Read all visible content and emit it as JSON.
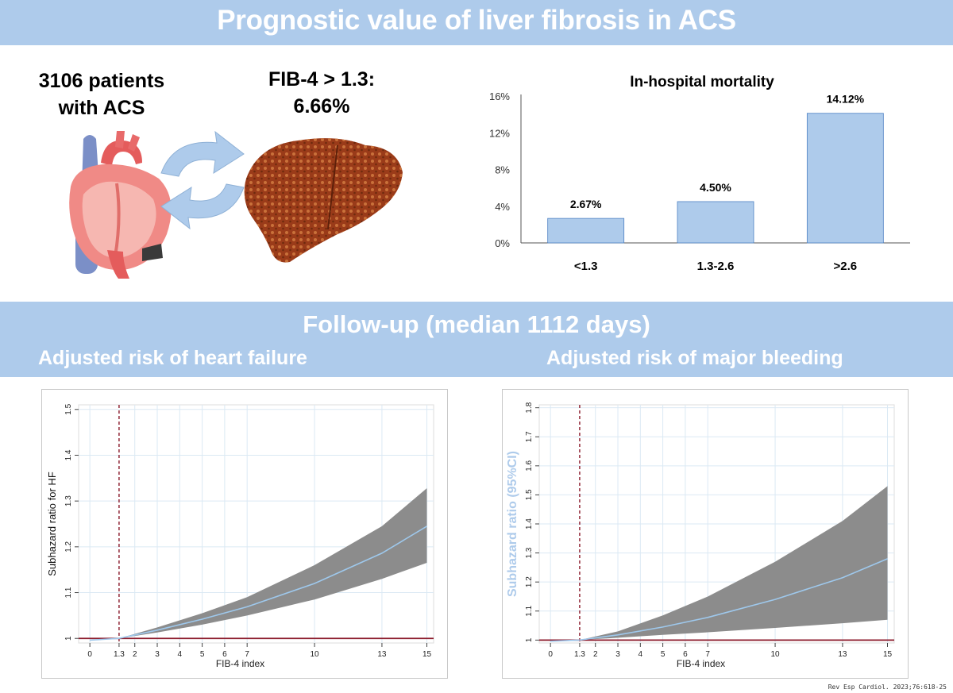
{
  "header": {
    "title": "Prognostic value of liver fibrosis in ACS"
  },
  "summary": {
    "patients_line1": "3106 patients",
    "patients_line2": "with ACS",
    "fib4_line1": "FIB-4 > 1.3:",
    "fib4_line2": "6.66%"
  },
  "icons": [
    "heart-icon",
    "liver-icon",
    "cycle-arrows-icon"
  ],
  "followup": {
    "title": "Follow-up (median 1112 days)",
    "hf_subtitle": "Adjusted risk of heart failure",
    "mb_subtitle": "Adjusted risk of major bleeding"
  },
  "citation": "Rev Esp Cardiol. 2023;76:618-25",
  "colors": {
    "band": "#aecbeb",
    "bar_fill": "#aecbeb",
    "ci_band": "#8c8c8c",
    "estimate_line": "#9ec8ec",
    "reference_line": "#8b1a2b"
  },
  "chart_data": [
    {
      "type": "bar",
      "title": "In-hospital mortality",
      "categories": [
        "<1.3",
        "1.3-2.6",
        ">2.6"
      ],
      "values": [
        2.67,
        4.5,
        14.12
      ],
      "value_labels": [
        "2.67%",
        "4.50%",
        "14.12%"
      ],
      "ylim": [
        0,
        16
      ],
      "yticks": [
        0,
        4,
        8,
        12,
        16
      ],
      "ytick_labels": [
        "0%",
        "4%",
        "8%",
        "12%",
        "16%"
      ],
      "grid": false
    },
    {
      "type": "line",
      "title": "Adjusted risk of heart failure",
      "xlabel": "FIB-4 index",
      "ylabel": "Subhazard ratio for HF",
      "xlim": [
        -0.5,
        15.3
      ],
      "ylim": [
        0.99,
        1.51
      ],
      "xticks": [
        0,
        1.3,
        2,
        3,
        4,
        5,
        6,
        7,
        10,
        13,
        15
      ],
      "xtick_labels": [
        "0",
        "1.3",
        "2",
        "3",
        "4",
        "5",
        "6",
        "7",
        "10",
        "13",
        "15"
      ],
      "yticks": [
        1,
        1.1,
        1.2,
        1.3,
        1.4,
        1.5
      ],
      "ytick_labels": [
        "1",
        "1.1",
        "1.2",
        "1.3",
        "1.4",
        "1.5"
      ],
      "reference_x": 1.3,
      "reference_y": 1,
      "grid": true,
      "series": [
        {
          "name": "estimate",
          "x": [
            0,
            1.3,
            3,
            5,
            7,
            10,
            13,
            15
          ],
          "y": [
            0.996,
            1.0,
            1.018,
            1.042,
            1.069,
            1.12,
            1.186,
            1.245
          ]
        },
        {
          "name": "lower_ci",
          "x": [
            1.3,
            3,
            5,
            7,
            10,
            13,
            15
          ],
          "y": [
            1.0,
            1.013,
            1.03,
            1.05,
            1.085,
            1.13,
            1.165
          ]
        },
        {
          "name": "upper_ci",
          "x": [
            1.3,
            3,
            5,
            7,
            10,
            13,
            15
          ],
          "y": [
            1.0,
            1.024,
            1.055,
            1.09,
            1.16,
            1.245,
            1.328
          ]
        }
      ]
    },
    {
      "type": "line",
      "title": "Adjusted risk of major bleeding",
      "xlabel": "FIB-4 index",
      "ylabel": "Subhazard ratio (95%CI)",
      "xlim": [
        -0.5,
        15.3
      ],
      "ylim": [
        0.99,
        1.81
      ],
      "xticks": [
        0,
        1.3,
        2,
        3,
        4,
        5,
        6,
        7,
        10,
        13,
        15
      ],
      "xtick_labels": [
        "0",
        "1.3",
        "2",
        "3",
        "4",
        "5",
        "6",
        "7",
        "10",
        "13",
        "15"
      ],
      "yticks": [
        1,
        1.1,
        1.2,
        1.3,
        1.4,
        1.5,
        1.6,
        1.7,
        1.8
      ],
      "ytick_labels": [
        "1",
        "1.1",
        "1.2",
        "1.3",
        "1.4",
        "1.5",
        "1.6",
        "1.7",
        "1.8"
      ],
      "reference_x": 1.3,
      "reference_y": 1,
      "grid": true,
      "series": [
        {
          "name": "estimate",
          "x": [
            0,
            1.3,
            3,
            5,
            7,
            10,
            13,
            15
          ],
          "y": [
            0.996,
            1.0,
            1.018,
            1.045,
            1.078,
            1.14,
            1.215,
            1.28
          ]
        },
        {
          "name": "lower_ci",
          "x": [
            1.3,
            3,
            5,
            7,
            10,
            13,
            15
          ],
          "y": [
            1.0,
            1.008,
            1.018,
            1.027,
            1.042,
            1.058,
            1.07
          ]
        },
        {
          "name": "upper_ci",
          "x": [
            1.3,
            3,
            5,
            7,
            10,
            13,
            15
          ],
          "y": [
            1.0,
            1.03,
            1.085,
            1.15,
            1.27,
            1.41,
            1.53
          ]
        }
      ]
    }
  ]
}
